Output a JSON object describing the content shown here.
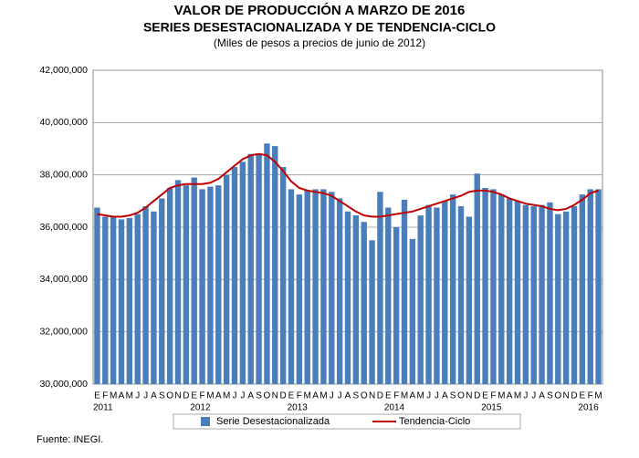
{
  "chart_data": {
    "type": "bar-line",
    "title": "VALOR DE PRODUCCIÓN A MARZO DE 2016",
    "subtitle": "SERIES DESESTACIONALIZADA Y DE TENDENCIA-CICLO",
    "note": "(Miles de pesos a precios de junio de 2012)",
    "source": "Fuente: INEGI.",
    "categories": [
      "E",
      "F",
      "M",
      "A",
      "M",
      "J",
      "J",
      "A",
      "S",
      "O",
      "N",
      "D",
      "E",
      "F",
      "M",
      "A",
      "M",
      "J",
      "J",
      "A",
      "S",
      "O",
      "N",
      "D",
      "E",
      "F",
      "M",
      "A",
      "M",
      "J",
      "J",
      "A",
      "S",
      "O",
      "N",
      "D",
      "E",
      "F",
      "M",
      "A",
      "M",
      "J",
      "J",
      "A",
      "S",
      "O",
      "N",
      "D",
      "E",
      "F",
      "M",
      "A",
      "M",
      "J",
      "J",
      "A",
      "S",
      "O",
      "N",
      "D",
      "E",
      "F",
      "M"
    ],
    "year_labels": [
      "2011",
      null,
      null,
      null,
      null,
      null,
      null,
      null,
      null,
      null,
      null,
      null,
      "2012",
      null,
      null,
      null,
      null,
      null,
      null,
      null,
      null,
      null,
      null,
      null,
      "2013",
      null,
      null,
      null,
      null,
      null,
      null,
      null,
      null,
      null,
      null,
      null,
      "2014",
      null,
      null,
      null,
      null,
      null,
      null,
      null,
      null,
      null,
      null,
      null,
      "2015",
      null,
      null,
      null,
      null,
      null,
      null,
      null,
      null,
      null,
      null,
      null,
      "2016",
      null,
      null
    ],
    "series": [
      {
        "name": "Serie Desestacionalizada",
        "type": "bar",
        "color": "#4a7ebb",
        "values": [
          36750000,
          36400000,
          36400000,
          36300000,
          36350000,
          36500000,
          36800000,
          36600000,
          37100000,
          37500000,
          37800000,
          37600000,
          37900000,
          37450000,
          37550000,
          37600000,
          38000000,
          38300000,
          38500000,
          38800000,
          38800000,
          39200000,
          39100000,
          38300000,
          37450000,
          37250000,
          37400000,
          37450000,
          37450000,
          37350000,
          37100000,
          36600000,
          36450000,
          36200000,
          35500000,
          37350000,
          36750000,
          36000000,
          37050000,
          35550000,
          36450000,
          36850000,
          36750000,
          37000000,
          37250000,
          36800000,
          36400000,
          38050000,
          37500000,
          37450000,
          37250000,
          37100000,
          37000000,
          36850000,
          36800000,
          36850000,
          36950000,
          36500000,
          36600000,
          36800000,
          37250000,
          37450000,
          37450000
        ]
      },
      {
        "name": "Tendencia-Ciclo",
        "type": "line",
        "color": "#c00000",
        "values": [
          36500000,
          36450000,
          36400000,
          36400000,
          36450000,
          36550000,
          36750000,
          37000000,
          37250000,
          37500000,
          37600000,
          37650000,
          37650000,
          37650000,
          37700000,
          37850000,
          38100000,
          38350000,
          38600000,
          38750000,
          38800000,
          38750000,
          38500000,
          38150000,
          37750000,
          37500000,
          37400000,
          37350000,
          37300000,
          37200000,
          37000000,
          36800000,
          36600000,
          36450000,
          36400000,
          36400000,
          36450000,
          36500000,
          36550000,
          36600000,
          36700000,
          36800000,
          36900000,
          37000000,
          37100000,
          37200000,
          37350000,
          37400000,
          37400000,
          37350000,
          37250000,
          37100000,
          37000000,
          36900000,
          36850000,
          36800000,
          36700000,
          36650000,
          36700000,
          36850000,
          37050000,
          37300000,
          37400000
        ]
      }
    ],
    "ylim": [
      30000000,
      42000000
    ],
    "yticks": [
      {
        "value": 30000000,
        "label": "30,000,000"
      },
      {
        "value": 32000000,
        "label": "32,000,000"
      },
      {
        "value": 34000000,
        "label": "34,000,000"
      },
      {
        "value": 36000000,
        "label": "36,000,000"
      },
      {
        "value": 38000000,
        "label": "38,000,000"
      },
      {
        "value": 40000000,
        "label": "40,000,000"
      },
      {
        "value": 42000000,
        "label": "42,000,000"
      }
    ],
    "grid": true
  }
}
